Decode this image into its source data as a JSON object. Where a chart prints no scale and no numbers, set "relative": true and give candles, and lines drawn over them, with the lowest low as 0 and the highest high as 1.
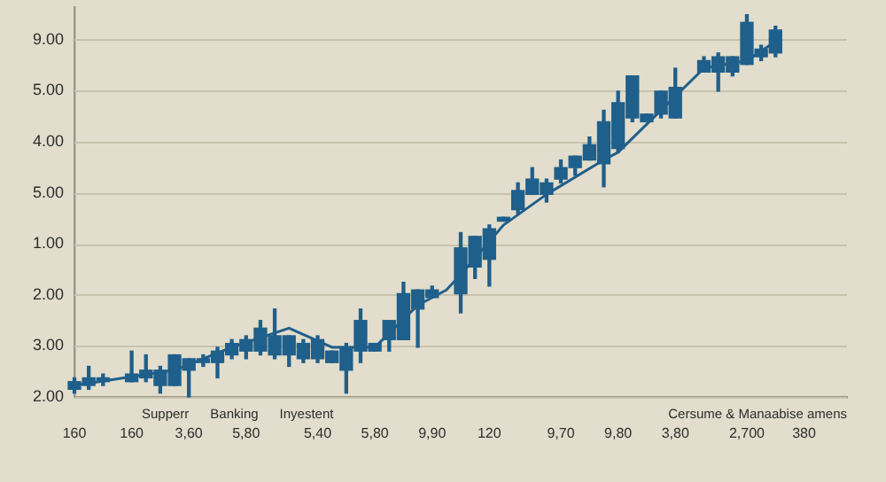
{
  "chart_data": {
    "type": "candlestick",
    "relative": true,
    "color": "#1f5f8b",
    "categories": [
      "160",
      null,
      null,
      null,
      "160",
      null,
      null,
      null,
      "3,60",
      null,
      null,
      null,
      "5,80",
      null,
      null,
      null,
      null,
      "5,40",
      null,
      null,
      null,
      "5,80",
      null,
      null,
      null,
      "9,90",
      null,
      null,
      null,
      "120",
      null,
      null,
      null,
      null,
      "9,70",
      null,
      null,
      null,
      "9,80",
      null,
      null,
      null,
      "3,80",
      null,
      null,
      null,
      null,
      "2,700",
      null,
      null,
      null,
      "380",
      null,
      null,
      null
    ],
    "ohlc": [
      [
        0.02,
        0.05,
        0.01,
        0.04
      ],
      [
        0.03,
        0.08,
        0.02,
        0.05
      ],
      [
        0.04,
        0.06,
        0.03,
        0.05
      ],
      null,
      [
        0.04,
        0.12,
        0.04,
        0.06
      ],
      [
        0.05,
        0.11,
        0.04,
        0.07
      ],
      [
        0.03,
        0.08,
        0.01,
        0.07
      ],
      [
        0.03,
        0.11,
        0.03,
        0.11
      ],
      [
        0.07,
        0.1,
        0,
        0.1
      ],
      [
        0.09,
        0.11,
        0.08,
        0.1
      ],
      [
        0.09,
        0.13,
        0.05,
        0.12
      ],
      [
        0.11,
        0.15,
        0.1,
        0.14
      ],
      [
        0.12,
        0.16,
        0.1,
        0.15
      ],
      [
        0.12,
        0.2,
        0.11,
        0.18
      ],
      [
        0.11,
        0.23,
        0.1,
        0.16
      ],
      [
        0.11,
        0.16,
        0.08,
        0.16
      ],
      [
        0.1,
        0.15,
        0.09,
        0.14
      ],
      [
        0.1,
        0.16,
        0.09,
        0.15
      ],
      [
        0.09,
        0.12,
        0.09,
        0.12
      ],
      [
        0.07,
        0.14,
        0.01,
        0.13
      ],
      [
        0.12,
        0.23,
        0.09,
        0.2
      ],
      [
        0.12,
        0.14,
        0.12,
        0.14
      ],
      [
        0.15,
        0.2,
        0.12,
        0.2
      ],
      [
        0.15,
        0.3,
        0.15,
        0.27
      ],
      [
        0.23,
        0.28,
        0.13,
        0.28
      ],
      [
        0.26,
        0.29,
        0.26,
        0.28
      ],
      null,
      [
        0.27,
        0.43,
        0.22,
        0.39
      ],
      [
        0.34,
        0.42,
        0.31,
        0.42
      ],
      [
        0.36,
        0.45,
        0.29,
        0.44
      ],
      [
        0.46,
        0.47,
        0.46,
        0.47
      ],
      [
        0.49,
        0.56,
        0.48,
        0.54
      ],
      [
        0.53,
        0.6,
        0.53,
        0.57
      ],
      [
        0.53,
        0.57,
        0.51,
        0.56
      ],
      [
        0.57,
        0.62,
        0.56,
        0.6
      ],
      [
        0.6,
        0.63,
        0.58,
        0.63
      ],
      [
        0.62,
        0.68,
        0.62,
        0.66
      ],
      [
        0.61,
        0.75,
        0.55,
        0.72
      ],
      [
        0.65,
        0.8,
        0.64,
        0.77
      ],
      [
        0.73,
        0.84,
        0.72,
        0.84
      ],
      [
        0.72,
        0.74,
        0.72,
        0.74
      ],
      [
        0.74,
        0.8,
        0.73,
        0.8
      ],
      [
        0.73,
        0.86,
        0.73,
        0.81
      ],
      null,
      [
        0.85,
        0.89,
        0.85,
        0.88
      ],
      [
        0.85,
        0.9,
        0.8,
        0.89
      ],
      [
        0.85,
        0.89,
        0.84,
        0.89
      ],
      [
        0.87,
        1,
        0.87,
        0.98
      ],
      [
        0.89,
        0.92,
        0.88,
        0.91
      ],
      [
        0.9,
        0.97,
        0.89,
        0.96
      ],
      null,
      null,
      null,
      null,
      null
    ],
    "series": [
      {
        "type": "line",
        "color": "#1f5f8b",
        "values": [
          0.03,
          null,
          null,
          null,
          null,
          null,
          null,
          0.07,
          null,
          0.1,
          null,
          0.13,
          null,
          null,
          null,
          0.18,
          null,
          null,
          0.13,
          null,
          null,
          0.13,
          null,
          null,
          0.24,
          null,
          0.28,
          0.32,
          null,
          null,
          0.45,
          null,
          null,
          0.53,
          null,
          null,
          null,
          0.62,
          0.64,
          null,
          null,
          null,
          null,
          null,
          0.86,
          null,
          null,
          0.88,
          null,
          0.93,
          null,
          null,
          null,
          null,
          null
        ]
      }
    ],
    "grid": true,
    "marker": "none",
    "legend": false,
    "annotations": [
      "9.00",
      "5.00",
      "4.00",
      "5.00",
      "1.00",
      "2.00",
      "3.00",
      "2.00",
      "Supperr",
      "Banking",
      "Inyestent",
      "Cersume & Manaabise amens"
    ]
  }
}
